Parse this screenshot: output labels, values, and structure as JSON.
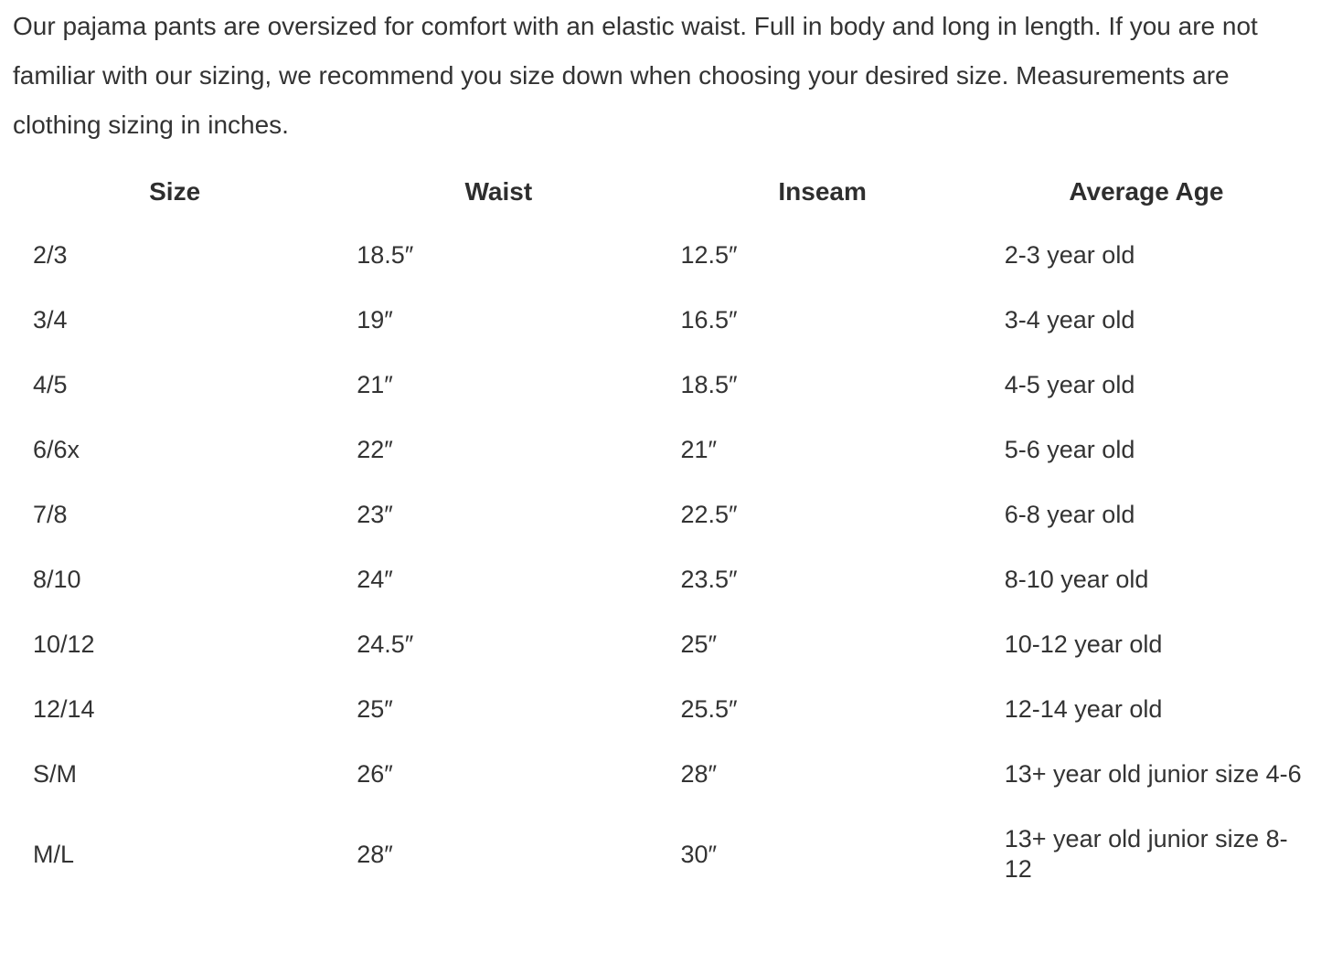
{
  "intro_text": "Our pajama pants are oversized for comfort with an elastic waist. Full in body and long in length. If you are not familiar with our sizing, we recommend you size down when choosing your desired size. Measurements are clothing sizing in inches.",
  "colors": {
    "background": "#ffffff",
    "text": "#333333",
    "header_text": "#2e2e2e"
  },
  "table": {
    "headers": [
      "Size",
      "Waist",
      "Inseam",
      "Average Age"
    ],
    "rows": [
      {
        "size": "2/3",
        "waist": "18.5″",
        "inseam": "12.5″",
        "age": "2-3 year old"
      },
      {
        "size": "3/4",
        "waist": "19″",
        "inseam": "16.5″",
        "age": "3-4 year old"
      },
      {
        "size": "4/5",
        "waist": "21″",
        "inseam": "18.5″",
        "age": "4-5 year old"
      },
      {
        "size": "6/6x",
        "waist": "22″",
        "inseam": "21″",
        "age": "5-6 year old"
      },
      {
        "size": "7/8",
        "waist": "23″",
        "inseam": "22.5″",
        "age": "6-8 year old"
      },
      {
        "size": "8/10",
        "waist": "24″",
        "inseam": "23.5″",
        "age": "8-10 year old"
      },
      {
        "size": "10/12",
        "waist": "24.5″",
        "inseam": "25″",
        "age": "10-12 year old"
      },
      {
        "size": "12/14",
        "waist": "25″",
        "inseam": "25.5″",
        "age": "12-14 year old"
      },
      {
        "size": "S/M",
        "waist": "26″",
        "inseam": "28″",
        "age": "13+ year old junior size 4-6"
      },
      {
        "size": "M/L",
        "waist": "28″",
        "inseam": "30″",
        "age": "13+ year old junior size 8-12"
      }
    ]
  }
}
